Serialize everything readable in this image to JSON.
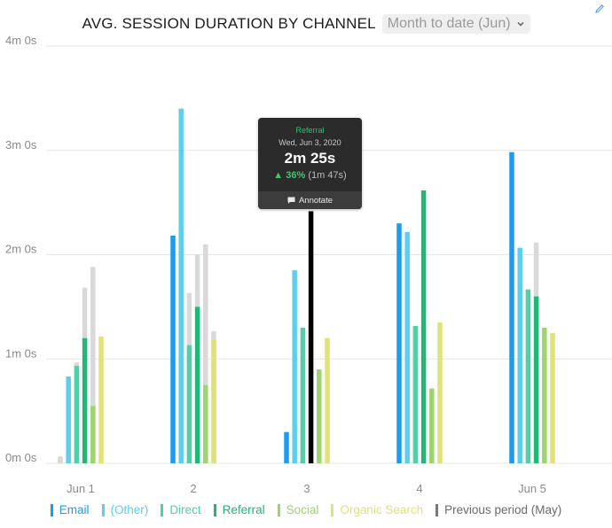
{
  "header": {
    "title": "AVG. SESSION DURATION BY CHANNEL",
    "date_range": "Month to date (Jun)"
  },
  "tooltip": {
    "series": "Referral",
    "date": "Wed, Jun 3, 2020",
    "value": "2m 25s",
    "change_pct": "36%",
    "previous": "(1m 47s)",
    "annotate_label": "Annotate"
  },
  "legend": {
    "items": [
      {
        "label": "Email",
        "color": "#1e9bf0"
      },
      {
        "label": "(Other)",
        "color": "#5ccfee"
      },
      {
        "label": "Direct",
        "color": "#4fd1a5"
      },
      {
        "label": "Referral",
        "color": "#1fb877"
      },
      {
        "label": "Social",
        "color": "#9ed46e"
      },
      {
        "label": "Organic Search",
        "color": "#e2e27a"
      },
      {
        "label": "Previous period (May)",
        "color": "#7a7a7a"
      }
    ]
  },
  "chart_data": {
    "type": "bar",
    "title": "AVG. SESSION DURATION BY CHANNEL",
    "categories": [
      "Jun 1",
      "2",
      "3",
      "4",
      "Jun 5"
    ],
    "y_ticks": [
      "0m 0s",
      "1m 0s",
      "2m 0s",
      "3m 0s",
      "4m 0s"
    ],
    "ylim_seconds": [
      0,
      240
    ],
    "unit": "seconds",
    "grid": true,
    "legend_position": "bottom",
    "highlight": {
      "series": "Referral",
      "category": "3",
      "color": "#000000"
    },
    "series": [
      {
        "name": "Email",
        "color": "#1e9bf0",
        "values": [
          0,
          131,
          18,
          138,
          179
        ],
        "previous": [
          4,
          null,
          null,
          null,
          null
        ]
      },
      {
        "name": "(Other)",
        "color": "#5ccfee",
        "values": [
          50,
          204,
          111,
          133,
          124
        ],
        "previous": [
          null,
          null,
          null,
          null,
          null
        ]
      },
      {
        "name": "Direct",
        "color": "#4fd1a5",
        "values": [
          56,
          68,
          78,
          79,
          100
        ],
        "previous": [
          58,
          98,
          null,
          null,
          null
        ]
      },
      {
        "name": "Referral",
        "color": "#1fb877",
        "values": [
          72,
          90,
          145,
          157,
          96
        ],
        "previous": [
          101,
          120,
          null,
          null,
          127
        ]
      },
      {
        "name": "Social",
        "color": "#9ed46e",
        "values": [
          33,
          45,
          54,
          43,
          78
        ],
        "previous": [
          113,
          126,
          null,
          null,
          null
        ]
      },
      {
        "name": "Organic Search",
        "color": "#e2e27a",
        "values": [
          73,
          71,
          72,
          81,
          75
        ],
        "previous": [
          null,
          76,
          null,
          null,
          null
        ]
      }
    ]
  }
}
